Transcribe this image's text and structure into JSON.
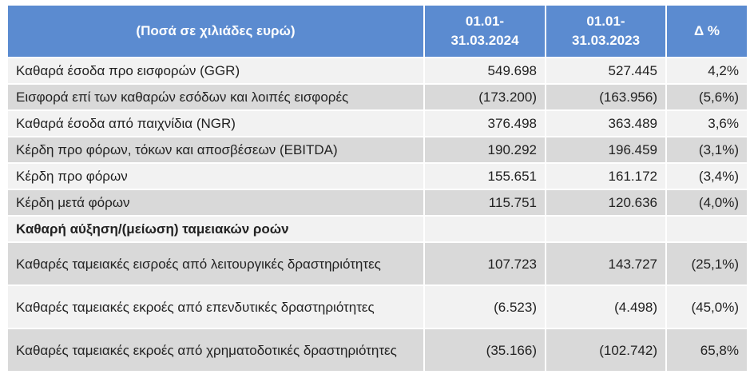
{
  "table": {
    "header": [
      "(Ποσά σε χιλιάδες ευρώ)",
      "01.01-\n31.03.2024",
      "01.01-\n31.03.2023",
      "Δ %"
    ],
    "rows": [
      [
        "Καθαρά έσοδα προ εισφορών (GGR)",
        "549.698",
        "527.445",
        "4,2%"
      ],
      [
        "Εισφορά επί των καθαρών εσόδων και λοιπές εισφορές",
        "(173.200)",
        "(163.956)",
        "(5,6%)"
      ],
      [
        "Καθαρά έσοδα από παιχνίδια (NGR)",
        "376.498",
        "363.489",
        "3,6%"
      ],
      [
        "Κέρδη προ φόρων, τόκων και αποσβέσεων (EBITDA)",
        "190.292",
        "196.459",
        "(3,1%)"
      ],
      [
        "Κέρδη προ φόρων",
        "155.651",
        "161.172",
        "(3,4%)"
      ],
      [
        "Κέρδη μετά φόρων",
        "115.751",
        "120.636",
        "(4,0%)"
      ],
      [
        "Καθαρή αύξηση/(μείωση) ταμειακών ροών"
      ],
      [
        "Καθαρές ταμειακές εισροές από λειτουργικές δραστηριότητες",
        "107.723",
        "143.727",
        "(25,1%)"
      ],
      [
        "Καθαρές ταμειακές εκροές από επενδυτικές δραστηριότητες",
        "(6.523)",
        "(4.498)",
        "(45,0%)"
      ],
      [
        "Καθαρές ταμειακές εκροές από χρηματοδοτικές δραστηριότητες",
        "(35.166)",
        "(102.742)",
        "65,8%"
      ]
    ]
  }
}
